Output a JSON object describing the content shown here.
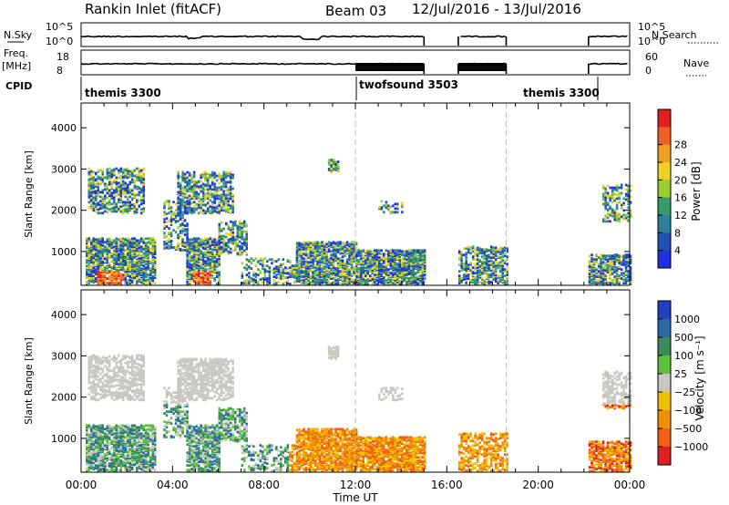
{
  "header": {
    "station": "Rankin Inlet (fitACF)",
    "beam": "Beam 03",
    "dates": "12/Jul/2016 - 13/Jul/2016"
  },
  "summary": {
    "nsky_label": "N.Sky",
    "nsky_ticks": [
      "10^5",
      "10^0"
    ],
    "nsearch_label": "N.Search",
    "nsearch_ticks": [
      "10^5",
      "10^0"
    ],
    "freq_label": "Freq.",
    "freq_unit": "[MHz]",
    "freq_ticks": [
      "18",
      "8"
    ],
    "nave_label": "Nave",
    "nave_ticks": [
      "60",
      "0"
    ],
    "cpid_label": "CPID",
    "cpid_segments": [
      {
        "name": "themis 3300",
        "start_hour": 0
      },
      {
        "name": "twofsound 3503",
        "start_hour": 12
      },
      {
        "name": "themis 3300",
        "start_hour": 18.6
      }
    ],
    "data_gaps_hours": [
      [
        15,
        16.5
      ],
      [
        18.6,
        22.2
      ]
    ]
  },
  "chart_data": [
    {
      "type": "heatmap",
      "name": "power-panel",
      "ylabel": "Slant Range [km]",
      "xlabel": "Time UT",
      "x_ticks": [
        "00:00",
        "04:00",
        "08:00",
        "12:00",
        "16:00",
        "20:00",
        "00:00"
      ],
      "x_range_hours": [
        0,
        24
      ],
      "y_ticks": [
        1000,
        2000,
        3000,
        4000
      ],
      "y_range_km": [
        180,
        4600
      ],
      "colorbar": {
        "label": "Power [dB]",
        "ticks": [
          "4",
          "8",
          "12",
          "16",
          "20",
          "24",
          "28"
        ],
        "colors": [
          "#2030e0",
          "#2050b0",
          "#2a7f9a",
          "#3a9a6a",
          "#9acd32",
          "#f0d020",
          "#f0a020",
          "#f06020",
          "#e02020"
        ]
      },
      "dashed_lines_hours": [
        12,
        18.6
      ]
    },
    {
      "type": "heatmap",
      "name": "velocity-panel",
      "ylabel": "Slant Range [km]",
      "xlabel": "Time UT",
      "x_ticks": [
        "00:00",
        "04:00",
        "08:00",
        "12:00",
        "16:00",
        "20:00",
        "00:00"
      ],
      "x_range_hours": [
        0,
        24
      ],
      "y_ticks": [
        1000,
        2000,
        3000,
        4000
      ],
      "y_range_km": [
        180,
        4600
      ],
      "colorbar": {
        "label": "Velocity [m s⁻¹]",
        "ticks": [
          "1000",
          "500",
          "100",
          "25",
          "−25",
          "−100",
          "−500",
          "−1000"
        ],
        "colors": [
          "#2040c0",
          "#2a6aa8",
          "#3a8a5a",
          "#60c040",
          "#c8c8c0",
          "#f0c000",
          "#f09000",
          "#f06010",
          "#e02020"
        ]
      },
      "dashed_lines_hours": [
        12,
        18.6
      ]
    }
  ]
}
